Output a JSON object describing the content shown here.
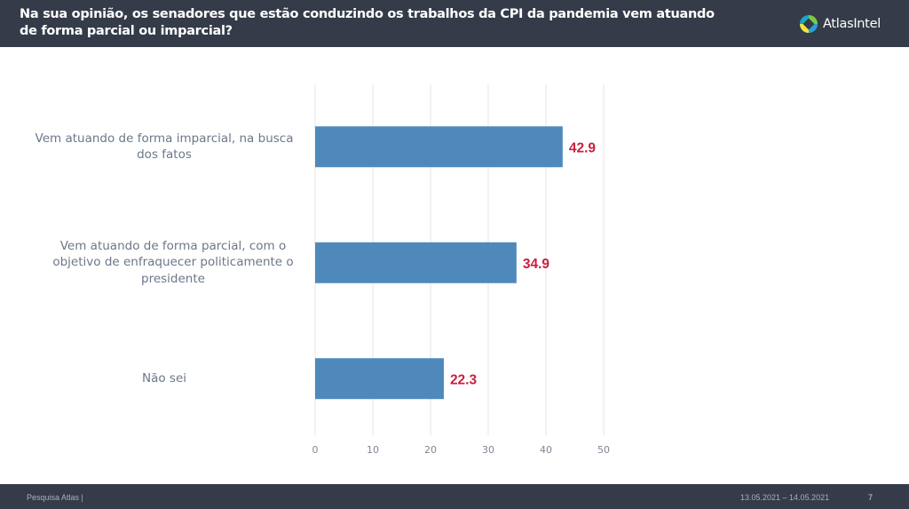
{
  "header": {
    "title": "Na sua opinião, os senadores que estão conduzindo os trabalhos da CPI da pandemia vem atuando de forma parcial ou imparcial?",
    "logo_text": "AtlasIntel",
    "logo_icon": "atlasintel-logo-icon"
  },
  "chart_data": {
    "type": "bar",
    "orientation": "horizontal",
    "title": "Na sua opinião, os senadores que estão conduzindo os trabalhos da CPI da pandemia vem atuando de forma parcial ou imparcial?",
    "categories": [
      "Vem atuando de forma imparcial, na busca dos fatos",
      "Vem atuando de forma parcial, com o objetivo de enfraquecer politicamente o presidente",
      "Não sei"
    ],
    "values": [
      42.9,
      34.9,
      22.3
    ],
    "value_labels": [
      "42.9",
      "34.9",
      "22.3"
    ],
    "xlabel": "",
    "ylabel": "",
    "xlim": [
      0,
      50
    ],
    "xticks": [
      0,
      10,
      20,
      30,
      40,
      50
    ],
    "xtick_labels": [
      "0",
      "10",
      "20",
      "30",
      "40",
      "50"
    ],
    "grid": true,
    "legend": "none",
    "colors": {
      "bar": "#4f89bb",
      "value_label": "#c9203f",
      "grid": "#e6e6e6",
      "tick_label": "#7f8794"
    }
  },
  "footer": {
    "source": "Pesquisa Atlas  |",
    "date_range": "13.05.2021 – 14.05.2021",
    "page_number": "7"
  }
}
